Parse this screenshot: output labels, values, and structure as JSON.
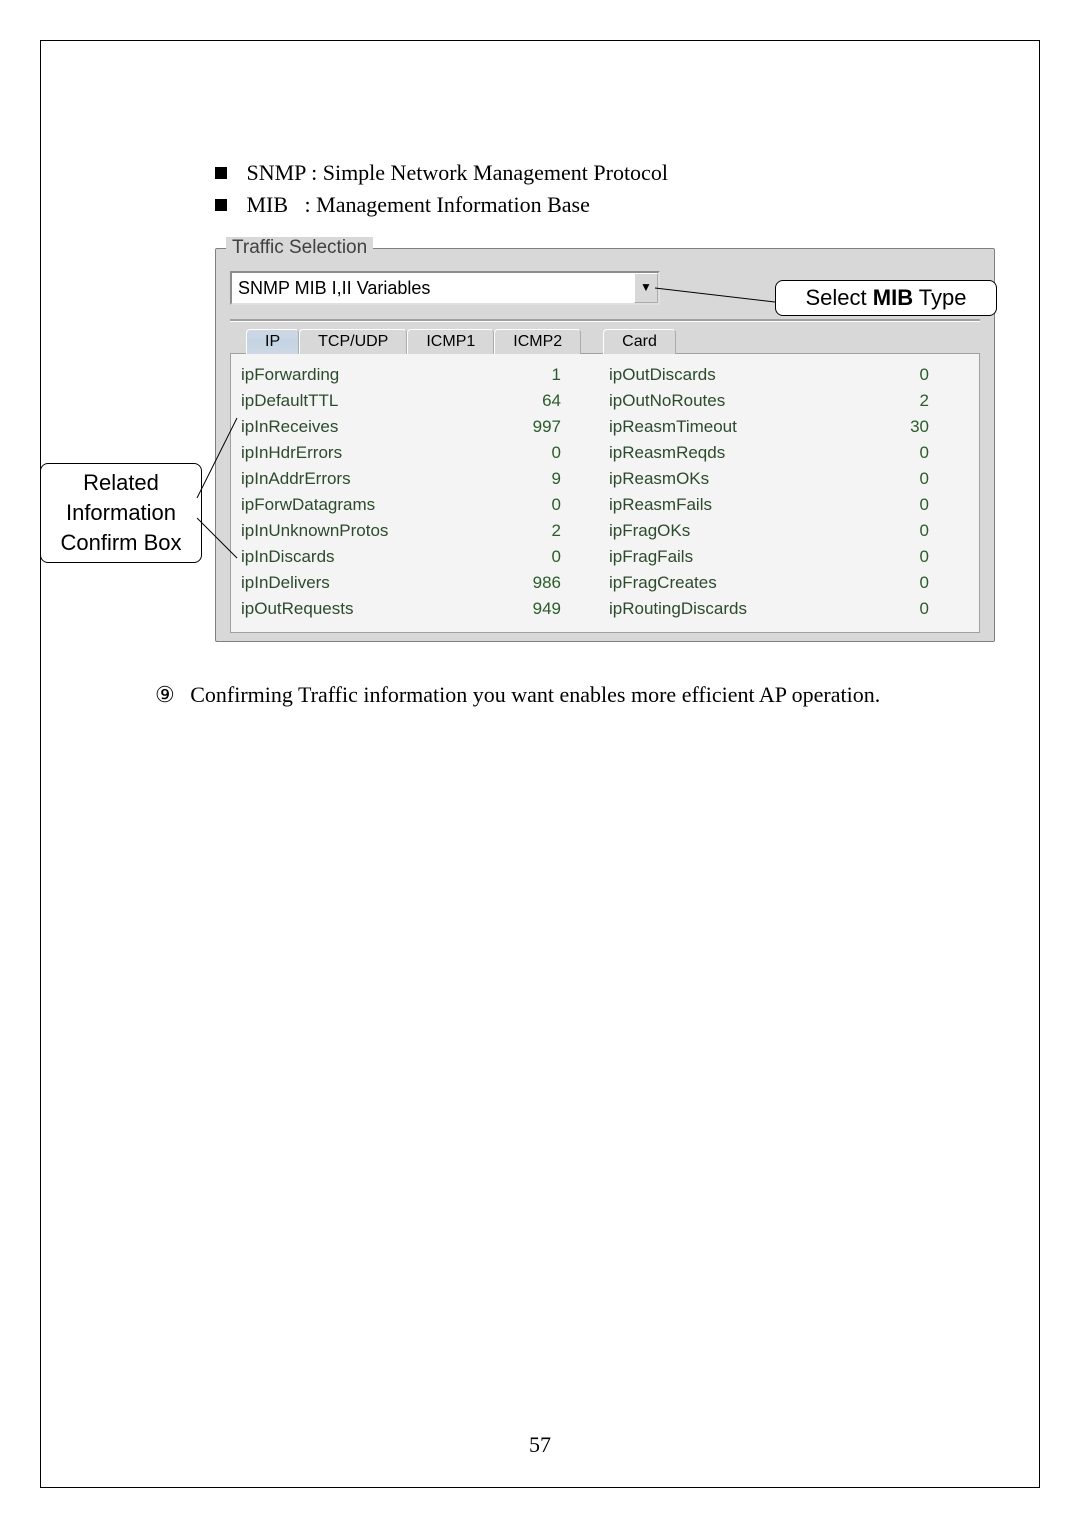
{
  "bullets": {
    "snmp_label": "SNMP : Simple Network Management Protocol",
    "mib_label": "MIB   : Management Information Base"
  },
  "panel": {
    "title": "Traffic Selection",
    "dropdown_value": "SNMP MIB I,II Variables"
  },
  "tabs": {
    "ip": "IP",
    "tcpudp": "TCP/UDP",
    "icmp1": "ICMP1",
    "icmp2": "ICMP2",
    "card": "Card"
  },
  "stats_left": [
    {
      "name": "ipForwarding",
      "value": "1"
    },
    {
      "name": "ipDefaultTTL",
      "value": "64"
    },
    {
      "name": "ipInReceives",
      "value": "997"
    },
    {
      "name": "ipInHdrErrors",
      "value": "0"
    },
    {
      "name": "ipInAddrErrors",
      "value": "9"
    },
    {
      "name": "ipForwDatagrams",
      "value": "0"
    },
    {
      "name": "ipInUnknownProtos",
      "value": "2"
    },
    {
      "name": "ipInDiscards",
      "value": "0"
    },
    {
      "name": "ipInDelivers",
      "value": "986"
    },
    {
      "name": "ipOutRequests",
      "value": "949"
    }
  ],
  "stats_right": [
    {
      "name": "ipOutDiscards",
      "value": "0"
    },
    {
      "name": "ipOutNoRoutes",
      "value": "2"
    },
    {
      "name": "ipReasmTimeout",
      "value": "30"
    },
    {
      "name": "ipReasmReqds",
      "value": "0"
    },
    {
      "name": "ipReasmOKs",
      "value": "0"
    },
    {
      "name": "ipReasmFails",
      "value": "0"
    },
    {
      "name": "ipFragOKs",
      "value": "0"
    },
    {
      "name": "ipFragFails",
      "value": "0"
    },
    {
      "name": "ipFragCreates",
      "value": "0"
    },
    {
      "name": "ipRoutingDiscards",
      "value": "0"
    }
  ],
  "callouts": {
    "left_line1": "Related",
    "left_line2": "Information",
    "left_line3": "Confirm Box",
    "right_prefix": "Select ",
    "right_bold": "MIB",
    "right_suffix": " Type"
  },
  "footnote": {
    "marker": "⑨",
    "text": "Confirming Traffic information you want enables more efficient AP operation."
  },
  "page_number": "57"
}
